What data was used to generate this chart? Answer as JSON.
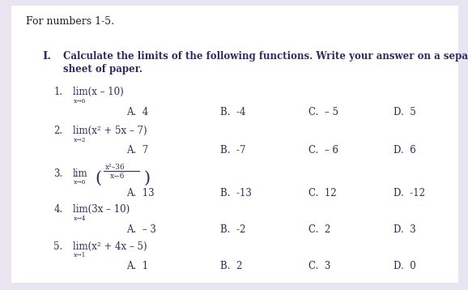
{
  "bg_outer": "#e8e4f0",
  "bg_inner": "#ffffff",
  "header": "For numbers 1-5.",
  "roman": "I.",
  "instruction_line1": "Calculate the limits of the following functions. Write your answer on a separate",
  "instruction_line2": "sheet of paper.",
  "questions": [
    {
      "num": "1.",
      "lim_text": "lim(x – 10)",
      "sub": "x→6",
      "choices": [
        "A.  4",
        "B.  -4",
        "C.  – 5",
        "D.  5"
      ]
    },
    {
      "num": "2.",
      "lim_text": "lim(x² + 5x – 7)",
      "sub": "x→2",
      "choices": [
        "A.  7",
        "B.  -7",
        "C.  – 6",
        "D.  6"
      ]
    },
    {
      "num": "3.",
      "lim_text": "lim",
      "sub": "x→6",
      "frac_num": "x²–36",
      "frac_den": "x−6",
      "is_frac": true,
      "choices": [
        "A.  13",
        "B.  -13",
        "C.  12",
        "D.  -12"
      ]
    },
    {
      "num": "4.",
      "lim_text": "lim(3x – 10)",
      "sub": "x→4",
      "choices": [
        "A.  – 3",
        "B.  -2",
        "C.  2",
        "D.  3"
      ]
    },
    {
      "num": "5.",
      "lim_text": "lim(x² + 4x – 5)",
      "sub": "x→1",
      "choices": [
        "A.  1",
        "B.  2",
        "C.  3",
        "D.  0"
      ]
    }
  ],
  "text_color": "#2b2b6b",
  "choice_cols": [
    0.27,
    0.47,
    0.66,
    0.84
  ]
}
